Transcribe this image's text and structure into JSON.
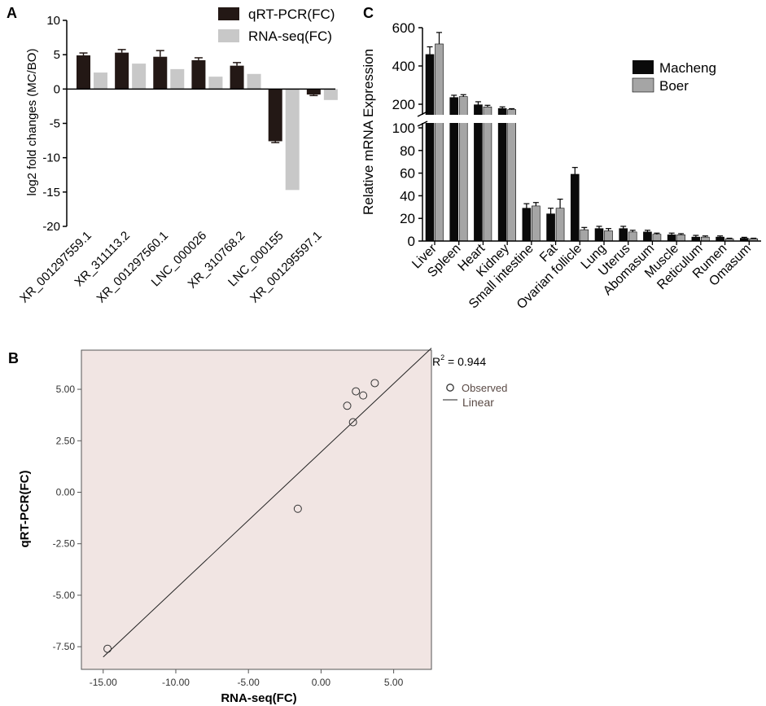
{
  "panels": {
    "a": "A",
    "b": "B",
    "c": "C"
  },
  "colors": {
    "qrt": "#231815",
    "rnaseq": "#c8c8c8",
    "macheng": "#0a0a0a",
    "boer": "#a5a5a5",
    "scatter_bg": "#f1e5e3",
    "legend_text_b": "#5a4a45"
  },
  "chart_data": [
    {
      "panel": "A",
      "type": "bar",
      "categories": [
        "XR_001297559.1",
        "XR_311113.2",
        "XR_001297560.1",
        "LNC_000026",
        "XR_310768.2",
        "LNC_000155",
        "XR_001295597.1"
      ],
      "series": [
        {
          "name": "qRT-PCR(FC)",
          "values": [
            4.9,
            5.3,
            4.7,
            4.2,
            3.4,
            -7.6,
            -0.8
          ],
          "errors": [
            0.35,
            0.45,
            0.9,
            0.35,
            0.45,
            0.2,
            0.15
          ]
        },
        {
          "name": "RNA-seq(FC)",
          "values": [
            2.4,
            3.7,
            2.9,
            1.8,
            2.2,
            -14.7,
            -1.6
          ]
        }
      ],
      "ylabel": "log2 fold changes (MC/BO)",
      "ylim": [
        -20,
        10
      ],
      "yticks": [
        "10",
        "5",
        "0",
        "-5",
        "-10",
        "-15",
        "-20"
      ],
      "legend": [
        "qRT-PCR(FC)",
        "RNA-seq(FC)"
      ]
    },
    {
      "panel": "C",
      "type": "bar",
      "categories": [
        "Liver",
        "Spleen",
        "Heart",
        "Kidney",
        "Small intestine",
        "Fat",
        "Ovarian follicle",
        "Lung",
        "Uterus",
        "Abomasum",
        "Muscle",
        "Reticulum",
        "Rumen",
        "Omasum"
      ],
      "series": [
        {
          "name": "Macheng",
          "values": [
            460,
            235,
            195,
            160,
            29,
            24,
            59,
            11,
            11,
            8,
            5.5,
            3.5,
            3.5,
            2.5
          ],
          "errors": [
            40,
            12,
            18,
            15,
            4,
            5,
            6,
            2,
            2,
            1.5,
            1.5,
            1.5,
            1,
            0.8
          ]
        },
        {
          "name": "Boer",
          "values": [
            515,
            240,
            175,
            150,
            31,
            29,
            10,
            9,
            8,
            6,
            5.5,
            3.5,
            2,
            2
          ],
          "errors": [
            60,
            10,
            15,
            8,
            3,
            8,
            2,
            2,
            1.5,
            1,
            1,
            1,
            0.5,
            0.5
          ]
        }
      ],
      "ylabel": "Relative mRNA Expression",
      "axis_break": [
        100,
        200
      ],
      "ylim_lower": [
        0,
        100
      ],
      "ylim_upper": [
        200,
        600
      ],
      "yticks": [
        "600",
        "400",
        "200",
        "100",
        "80",
        "60",
        "40",
        "20",
        "0"
      ],
      "legend": [
        "Macheng",
        "Boer"
      ]
    },
    {
      "panel": "B",
      "type": "scatter",
      "x": [
        2.4,
        3.7,
        2.9,
        1.8,
        2.2,
        -14.7,
        -1.6
      ],
      "y": [
        4.9,
        5.3,
        4.7,
        4.2,
        3.4,
        -7.6,
        -0.8
      ],
      "fit_line": {
        "x": [
          -15,
          7.6
        ],
        "y": [
          -8.0,
          7.0
        ]
      },
      "xlabel": "RNA-seq(FC)",
      "ylabel": "qRT-PCR(FC)",
      "xlim": [
        -16.5,
        7.6
      ],
      "ylim": [
        -8.6,
        6.9
      ],
      "xticks": [
        "-15.00",
        "-10.00",
        "-5.00",
        "0.00",
        "5.00"
      ],
      "yticks": [
        "5.00",
        "2.50",
        "0.00",
        "-2.50",
        "-5.00",
        "-7.50"
      ],
      "r2_prefix": "R",
      "r2_exp": "2",
      "r2_value": " = 0.944",
      "legend": {
        "observed": "Observed",
        "linear": "Linear"
      }
    }
  ]
}
